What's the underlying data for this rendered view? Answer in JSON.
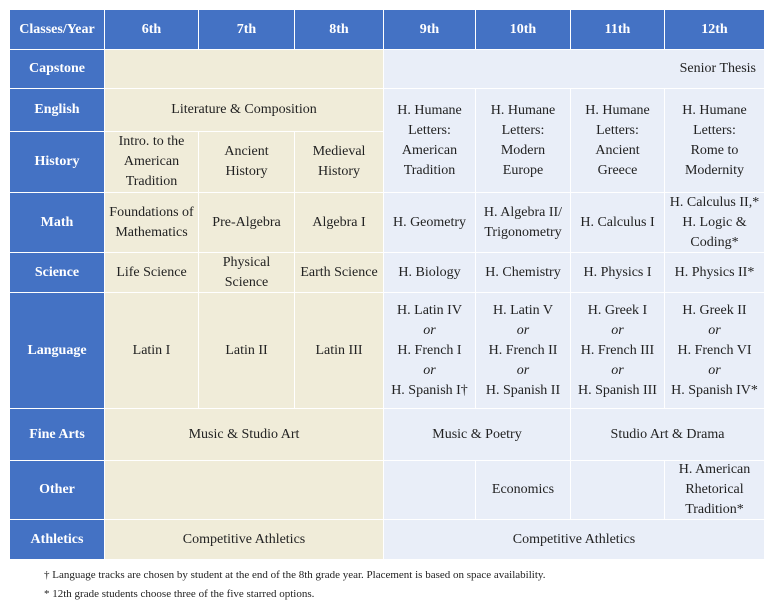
{
  "header": {
    "corner": "Classes/Year",
    "grades": [
      "6th",
      "7th",
      "8th",
      "9th",
      "10th",
      "11th",
      "12th"
    ]
  },
  "rows": {
    "capstone": {
      "label": "Capstone",
      "grade12": "Senior Thesis"
    },
    "english": {
      "label": "English",
      "middle": "Literature & Composition"
    },
    "history": {
      "label": "History",
      "g6": [
        "Intro. to the",
        "American",
        "Tradition"
      ],
      "g7": [
        "Ancient",
        "History"
      ],
      "g8": [
        "Medieval",
        "History"
      ]
    },
    "humane_letters": {
      "g9": [
        "H. Humane",
        "Letters:",
        "American",
        "Tradition"
      ],
      "g10": [
        "H. Humane",
        "Letters:",
        "Modern",
        "Europe"
      ],
      "g11": [
        "H. Humane",
        "Letters:",
        "Ancient",
        "Greece"
      ],
      "g12": [
        "H. Humane",
        "Letters:",
        "Rome to",
        "Modernity"
      ]
    },
    "math": {
      "label": "Math",
      "g6": [
        "Foundations of",
        "Mathematics"
      ],
      "g7": "Pre-Algebra",
      "g8": "Algebra I",
      "g9": "H. Geometry",
      "g10": [
        "H. Algebra II/",
        "Trigonometry"
      ],
      "g11": "H. Calculus I",
      "g12": [
        "H. Calculus II,*",
        "H. Logic &",
        "Coding*"
      ]
    },
    "science": {
      "label": "Science",
      "g6": "Life Science",
      "g7": [
        "Physical",
        "Science"
      ],
      "g8": "Earth Science",
      "g9": "H. Biology",
      "g10": "H. Chemistry",
      "g11": "H. Physics I",
      "g12": "H. Physics II*"
    },
    "language": {
      "label": "Language",
      "g6": "Latin I",
      "g7": "Latin II",
      "g8": "Latin III",
      "or_word": "or",
      "g9": [
        "H. Latin IV",
        "H. French I",
        "H. Spanish I†"
      ],
      "g10": [
        "H. Latin V",
        "H. French II",
        "H. Spanish II"
      ],
      "g11": [
        "H. Greek I",
        "H. French III",
        "H. Spanish III"
      ],
      "g12": [
        "H. Greek II",
        "H. French VI",
        "H. Spanish IV*"
      ]
    },
    "fine_arts": {
      "label": "Fine Arts",
      "middle": "Music & Studio Art",
      "g9_10": "Music & Poetry",
      "g11_12": "Studio Art & Drama"
    },
    "other": {
      "label": "Other",
      "g10": "Economics",
      "g12": [
        "H. American",
        "Rhetorical",
        "Tradition*"
      ]
    },
    "athletics": {
      "label": "Athletics",
      "middle": "Competitive Athletics",
      "high": "Competitive Athletics"
    }
  },
  "notes": [
    "† Language tracks are chosen by student at the end of the 8th grade year. Placement is based on space availability.",
    "* 12th grade students choose three of the five starred options."
  ],
  "colors": {
    "header": "#4472c4",
    "middle_school": "#f0ecd9",
    "high_school": "#e9eef8"
  }
}
